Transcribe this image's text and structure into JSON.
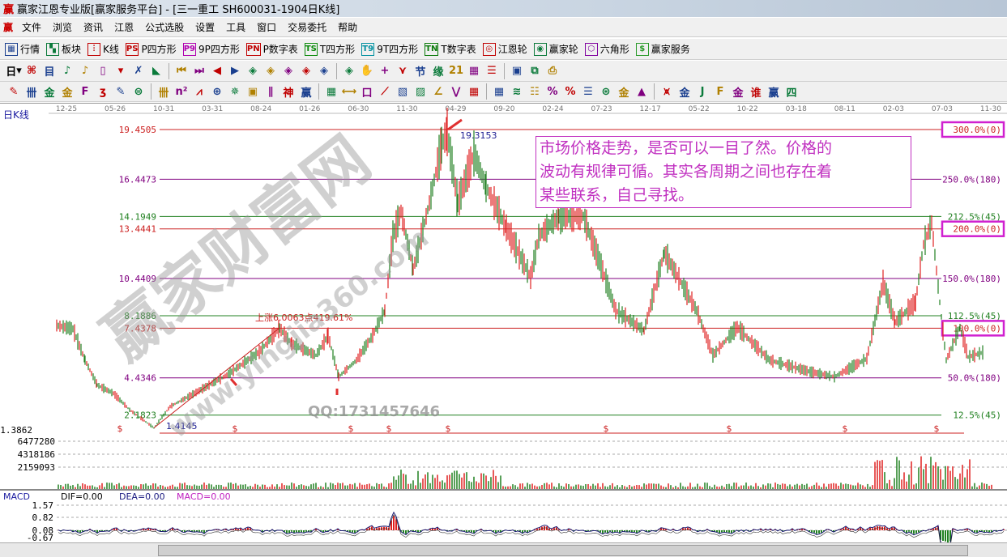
{
  "window": {
    "title": "赢家江恩专业版[赢家服务平台] - [三一重工  SH600031-1904日K线]",
    "logo": "赢"
  },
  "menu": {
    "logo": "赢",
    "items": [
      "文件",
      "浏览",
      "资讯",
      "江恩",
      "公式选股",
      "设置",
      "工具",
      "窗口",
      "交易委托",
      "帮助"
    ]
  },
  "toolbar1": {
    "items": [
      {
        "icon": "table-icon",
        "glyph": "▦",
        "label": "行情",
        "color": "#1a3f8f"
      },
      {
        "icon": "blocks-icon",
        "glyph": "▚",
        "label": "板块",
        "color": "#0a7a3a"
      },
      {
        "icon": "kline-icon",
        "glyph": "⫶",
        "label": "K线",
        "color": "#c00000"
      },
      {
        "icon": "ps-icon",
        "glyph": "PS",
        "label": "P四方形",
        "color": "#c00000"
      },
      {
        "icon": "p9-icon",
        "glyph": "P9",
        "label": "9P四方形",
        "color": "#b000b0"
      },
      {
        "icon": "pn-icon",
        "glyph": "PN",
        "label": "P数字表",
        "color": "#c00000"
      },
      {
        "icon": "ts-icon",
        "glyph": "TS",
        "label": "T四方形",
        "color": "#0a8a0a"
      },
      {
        "icon": "t9-icon",
        "glyph": "T9",
        "label": "9T四方形",
        "color": "#0090a0"
      },
      {
        "icon": "tn-icon",
        "glyph": "TN",
        "label": "T数字表",
        "color": "#0a7a0a"
      },
      {
        "icon": "gann-wheel-icon",
        "glyph": "◎",
        "label": "江恩轮",
        "color": "#c00000"
      },
      {
        "icon": "winner-wheel-icon",
        "glyph": "◉",
        "label": "赢家轮",
        "color": "#0a7a3a"
      },
      {
        "icon": "hexagon-icon",
        "glyph": "⬡",
        "label": "六角形",
        "color": "#8000a0"
      },
      {
        "icon": "dollar-icon",
        "glyph": "$",
        "label": "赢家服务",
        "color": "#2a9a2a"
      }
    ]
  },
  "toolbar2": {
    "period_label": "日",
    "glyphs": [
      "⌘",
      "目",
      "♪",
      "♪",
      "▯",
      "▾",
      "✗",
      "◣",
      "⏮",
      "⏭",
      "◀",
      "▶",
      "◈",
      "◈",
      "◈",
      "◈",
      "◈",
      "◈",
      "✋",
      "+",
      "⋎",
      "节",
      "缘",
      "21",
      "▦",
      "☰",
      "▣",
      "⧉",
      "⎙"
    ]
  },
  "toolbar3": {
    "glyphs": [
      "✎",
      "卌",
      "金",
      "金",
      "F",
      "ʒ",
      "✎",
      "⊜",
      "卌",
      "n²",
      "⩘",
      "⊕",
      "✵",
      "▣",
      "∥",
      "神",
      "赢",
      "▦",
      "⟷",
      "口",
      "⟋",
      "▧",
      "▨",
      "∠",
      "⋁",
      "▦",
      "▦",
      "≋",
      "☷",
      "%",
      "%",
      "☰",
      "⊛",
      "金",
      "▲",
      "⩙",
      "金",
      "J",
      "F",
      "金",
      "谁",
      "赢",
      "四"
    ]
  },
  "chart": {
    "period_label": "日K线",
    "date_ticks": [
      "12-25",
      "05-26",
      "10-31",
      "03-31",
      "08-24",
      "01-26",
      "06-30",
      "11-30",
      "04-29",
      "09-20",
      "02-24",
      "07-23",
      "12-17",
      "05-22",
      "10-22",
      "03-18",
      "08-11",
      "02-03",
      "07-03",
      "11-30"
    ],
    "levels": [
      {
        "price": "19.4505",
        "pct": "300.0%(0)",
        "color": "#cc2020",
        "boxed": true
      },
      {
        "price": "16.4473",
        "pct": "250.0%(180)",
        "color": "#800080",
        "boxed": false
      },
      {
        "price": "14.1949",
        "pct": "212.5%(45)",
        "color": "#208020",
        "boxed": false
      },
      {
        "price": "13.4441",
        "pct": "200.0%(0)",
        "color": "#cc2020",
        "boxed": true
      },
      {
        "price": "10.4409",
        "pct": "150.0%(180)",
        "color": "#800080",
        "boxed": false
      },
      {
        "price": "8.1886",
        "pct": "112.5%(45)",
        "color": "#208020",
        "boxed": false
      },
      {
        "price": "7.4378",
        "pct": "100.0%(0)",
        "color": "#cc2020",
        "boxed": true
      },
      {
        "price": "4.4346",
        "pct": "50.0%(180)",
        "color": "#800080",
        "boxed": false
      },
      {
        "price": "2.1823",
        "pct": "12.5%(45)",
        "color": "#208020",
        "boxed": false
      }
    ],
    "bottom_price": "1.3862",
    "high_label": "19.3153",
    "low_label": "1.4145",
    "rise_label": "上涨6.0063点419.61%",
    "note": [
      "市场价格走势，是否可以一目了然。价格的",
      "波动有规律可循。其实各周期之间也存在着",
      "某些联系，自己寻找。"
    ],
    "volume_ticks": [
      "6477280",
      "4318186",
      "2159093"
    ],
    "colors": {
      "up": "#e02020",
      "down": "#208020",
      "highlight_box": "#d020d0"
    }
  },
  "macd": {
    "title": "MACD",
    "dif": "DIF=0.00",
    "dea": "DEA=0.00",
    "macd": "MACD=0.00",
    "ticks": [
      "1.57",
      "0.82",
      "0.08",
      "-0.67"
    ]
  },
  "watermarks": {
    "site_cn": "赢家财富网",
    "site_url": "www.yingjia360.com",
    "qq": "QQ:1731457646"
  }
}
